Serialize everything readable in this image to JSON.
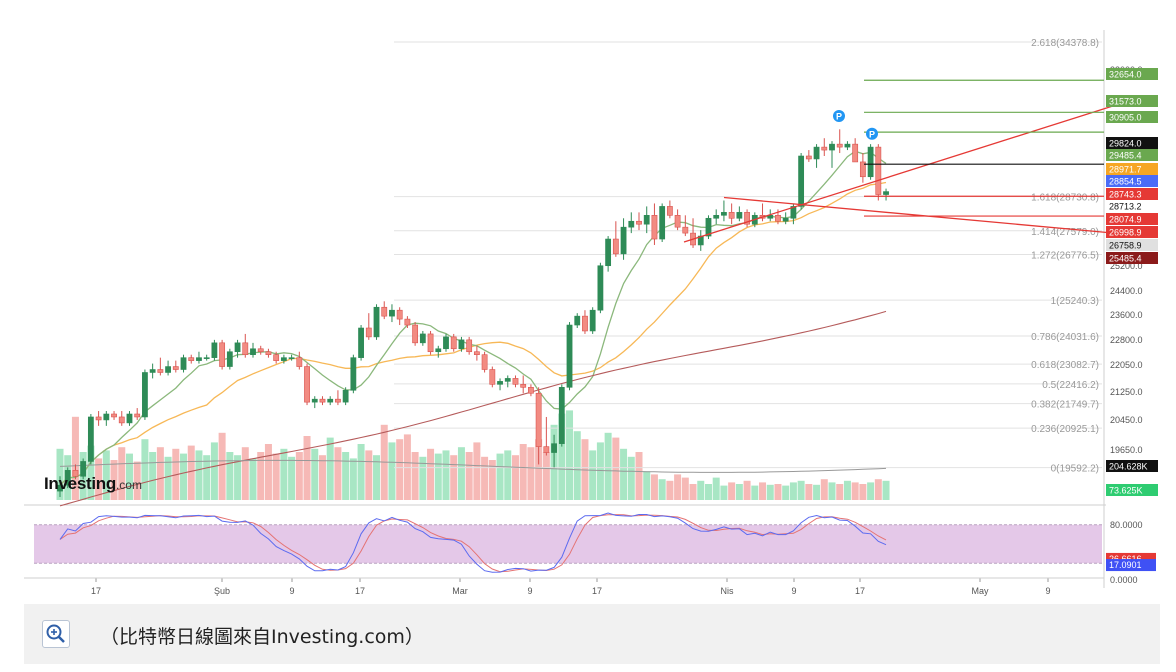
{
  "caption": {
    "text": "（比特幣日線圖來自Investing.com）",
    "zoom_icon": "zoom-in-magnifier-icon"
  },
  "logo": {
    "main": "Investing",
    "sub": ".com"
  },
  "chart_data": {
    "type": "candlestick",
    "title": "",
    "y_axis_ticks": [
      33000,
      25200,
      24400,
      23600,
      22800,
      22050,
      21250,
      20450,
      19650
    ],
    "x_axis_ticks": [
      "17",
      "Şub",
      "9",
      "17",
      "Mar",
      "9",
      "17",
      "Nis",
      "9",
      "17",
      "May",
      "9"
    ],
    "price_labels": [
      {
        "value": "32654.0",
        "color": "#6aa84f"
      },
      {
        "value": "31573.0",
        "color": "#6aa84f"
      },
      {
        "value": "30905.0",
        "color": "#6aa84f"
      },
      {
        "value": "29824.0",
        "color": "#111111"
      },
      {
        "value": "29485.4",
        "color": "#6aa84f"
      },
      {
        "value": "28971.7",
        "color": "#f6a623"
      },
      {
        "value": "28854.5",
        "color": "#4a6cf7"
      },
      {
        "value": "28743.3",
        "color": "#e53935"
      },
      {
        "value": "28713.2",
        "color": "#ffffff"
      },
      {
        "value": "28074.9",
        "color": "#e53935"
      },
      {
        "value": "26998.9",
        "color": "#e53935"
      },
      {
        "value": "26758.9",
        "color": "#e0e0e0"
      },
      {
        "value": "25485.4",
        "color": "#8b1a1a"
      },
      {
        "value": "204.628K",
        "color": "#111111"
      },
      {
        "value": "73.625K",
        "color": "#2ecc71"
      }
    ],
    "fibonacci_levels": [
      {
        "label": "2.618(34378.8)"
      },
      {
        "label": "1.618(28730.8)"
      },
      {
        "label": "1.414(27579.0)"
      },
      {
        "label": "1.272(26776.5)"
      },
      {
        "label": "1(25240.3)"
      },
      {
        "label": "0.786(24031.6)"
      },
      {
        "label": "0.618(23082.7)"
      },
      {
        "label": "0.5(22416.2)"
      },
      {
        "label": "0.382(21749.7)"
      },
      {
        "label": "0.236(20925.1)"
      },
      {
        "label": "0(19592.2)"
      }
    ],
    "pivot_markers": [
      "P",
      "P"
    ],
    "candles": [
      [
        18800,
        19300,
        18600,
        19000
      ],
      [
        19000,
        19600,
        18900,
        19500
      ],
      [
        19500,
        19700,
        19200,
        19300
      ],
      [
        19300,
        19900,
        19200,
        19800
      ],
      [
        19800,
        21400,
        19700,
        21300
      ],
      [
        21300,
        21500,
        21000,
        21200
      ],
      [
        21200,
        21500,
        21000,
        21400
      ],
      [
        21400,
        21500,
        21200,
        21300
      ],
      [
        21300,
        21500,
        21000,
        21100
      ],
      [
        21100,
        21500,
        21000,
        21400
      ],
      [
        21400,
        21600,
        21200,
        21300
      ],
      [
        21300,
        22900,
        21200,
        22800
      ],
      [
        22800,
        23100,
        22600,
        22900
      ],
      [
        22900,
        23300,
        22700,
        22800
      ],
      [
        22800,
        23200,
        22700,
        23000
      ],
      [
        23000,
        23200,
        22800,
        22900
      ],
      [
        22900,
        23400,
        22800,
        23300
      ],
      [
        23300,
        23400,
        23100,
        23200
      ],
      [
        23200,
        23500,
        23100,
        23300
      ],
      [
        23300,
        23400,
        23200,
        23300
      ],
      [
        23300,
        23900,
        23200,
        23800
      ],
      [
        23800,
        23900,
        22900,
        23000
      ],
      [
        23000,
        23600,
        22900,
        23500
      ],
      [
        23500,
        23900,
        23300,
        23800
      ],
      [
        23800,
        24100,
        23300,
        23400
      ],
      [
        23400,
        23800,
        23300,
        23600
      ],
      [
        23600,
        23700,
        23400,
        23500
      ],
      [
        23500,
        23600,
        23300,
        23400
      ],
      [
        23400,
        23500,
        23100,
        23200
      ],
      [
        23200,
        23400,
        23100,
        23300
      ],
      [
        23300,
        23400,
        23200,
        23300
      ],
      [
        23300,
        23500,
        22900,
        23000
      ],
      [
        23000,
        23100,
        21700,
        21800
      ],
      [
        21800,
        22000,
        21600,
        21900
      ],
      [
        21900,
        22000,
        21700,
        21800
      ],
      [
        21800,
        22000,
        21700,
        21900
      ],
      [
        21900,
        22200,
        21700,
        21800
      ],
      [
        21800,
        22300,
        21700,
        22200
      ],
      [
        22200,
        23400,
        22100,
        23300
      ],
      [
        23300,
        24400,
        23200,
        24300
      ],
      [
        24300,
        24800,
        23900,
        24000
      ],
      [
        24000,
        25100,
        23900,
        25000
      ],
      [
        25000,
        25200,
        24600,
        24700
      ],
      [
        24700,
        25100,
        24500,
        24900
      ],
      [
        24900,
        25000,
        24400,
        24600
      ],
      [
        24600,
        24700,
        24300,
        24400
      ],
      [
        24400,
        24500,
        23700,
        23800
      ],
      [
        23800,
        24200,
        23700,
        24100
      ],
      [
        24100,
        24200,
        23400,
        23500
      ],
      [
        23500,
        23700,
        23300,
        23600
      ],
      [
        23600,
        24100,
        23500,
        24000
      ],
      [
        24000,
        24100,
        23500,
        23600
      ],
      [
        23600,
        24000,
        23500,
        23900
      ],
      [
        23900,
        24000,
        23400,
        23500
      ],
      [
        23500,
        23700,
        23200,
        23400
      ],
      [
        23400,
        23500,
        22800,
        22900
      ],
      [
        22900,
        23000,
        22300,
        22400
      ],
      [
        22400,
        22600,
        22200,
        22500
      ],
      [
        22500,
        22700,
        22300,
        22600
      ],
      [
        22600,
        22700,
        22300,
        22400
      ],
      [
        22400,
        22700,
        22100,
        22300
      ],
      [
        22300,
        22400,
        22000,
        22100
      ],
      [
        22100,
        22300,
        19700,
        20300
      ],
      [
        20300,
        21300,
        20000,
        20100
      ],
      [
        20100,
        20700,
        19600,
        20400
      ],
      [
        20400,
        22400,
        20300,
        22300
      ],
      [
        22300,
        24500,
        22200,
        24400
      ],
      [
        24400,
        24800,
        24300,
        24700
      ],
      [
        24700,
        24900,
        24100,
        24200
      ],
      [
        24200,
        25000,
        24100,
        24900
      ],
      [
        24900,
        26500,
        24800,
        26400
      ],
      [
        26400,
        27400,
        26200,
        27300
      ],
      [
        27300,
        27900,
        26700,
        26800
      ],
      [
        26800,
        28000,
        26600,
        27700
      ],
      [
        27700,
        28200,
        27500,
        27900
      ],
      [
        27900,
        28200,
        27600,
        27800
      ],
      [
        27800,
        28400,
        27500,
        28100
      ],
      [
        28100,
        28500,
        27100,
        27300
      ],
      [
        27300,
        28500,
        27200,
        28400
      ],
      [
        28400,
        28600,
        28000,
        28100
      ],
      [
        28100,
        28300,
        27600,
        27700
      ],
      [
        27700,
        28100,
        27400,
        27500
      ],
      [
        27500,
        28000,
        27000,
        27100
      ],
      [
        27100,
        27600,
        26900,
        27400
      ],
      [
        27400,
        28100,
        27300,
        28000
      ],
      [
        28000,
        28300,
        27800,
        28100
      ],
      [
        28100,
        28600,
        27900,
        28200
      ],
      [
        28200,
        28500,
        27800,
        28000
      ],
      [
        28000,
        28400,
        27900,
        28200
      ],
      [
        28200,
        28300,
        27700,
        27800
      ],
      [
        27800,
        28200,
        27700,
        28100
      ],
      [
        28100,
        28500,
        27900,
        28000
      ],
      [
        28000,
        28300,
        27900,
        28100
      ],
      [
        28100,
        28300,
        27800,
        27900
      ],
      [
        27900,
        28200,
        27800,
        28000
      ],
      [
        28000,
        28500,
        27800,
        28400
      ],
      [
        28400,
        30200,
        28300,
        30100
      ],
      [
        30100,
        30300,
        29900,
        30000
      ],
      [
        30000,
        30500,
        29700,
        30400
      ],
      [
        30400,
        30700,
        30100,
        30300
      ],
      [
        30300,
        30600,
        29700,
        30500
      ],
      [
        30500,
        31000,
        30200,
        30400
      ],
      [
        30400,
        30600,
        30300,
        30500
      ],
      [
        30500,
        30700,
        30000,
        29900
      ],
      [
        29900,
        30200,
        29200,
        29400
      ],
      [
        29400,
        30500,
        29300,
        30400
      ],
      [
        30400,
        30500,
        28600,
        28800
      ],
      [
        28800,
        29000,
        28600,
        28900
      ]
    ],
    "volumes": [
      320,
      280,
      520,
      300,
      340,
      260,
      310,
      250,
      330,
      290,
      240,
      380,
      300,
      330,
      270,
      320,
      290,
      340,
      310,
      280,
      360,
      420,
      300,
      280,
      330,
      260,
      300,
      350,
      290,
      320,
      270,
      300,
      400,
      320,
      280,
      390,
      330,
      300,
      260,
      350,
      310,
      280,
      470,
      360,
      380,
      410,
      300,
      270,
      320,
      290,
      310,
      280,
      330,
      300,
      360,
      270,
      250,
      290,
      310,
      280,
      350,
      330,
      380,
      300,
      470,
      540,
      560,
      430,
      380,
      310,
      360,
      420,
      390,
      320,
      270,
      300,
      180,
      160,
      130,
      120,
      160,
      140,
      100,
      120,
      100,
      140,
      90,
      110,
      100,
      120,
      90,
      110,
      95,
      100,
      90,
      110,
      120,
      100,
      95,
      130,
      110,
      100,
      120,
      110,
      100,
      110,
      130,
      120
    ]
  },
  "stochastic": {
    "levels": [
      "80.0000",
      "0.0000"
    ],
    "k_value": "26.6616",
    "d_value": "17.0901"
  }
}
